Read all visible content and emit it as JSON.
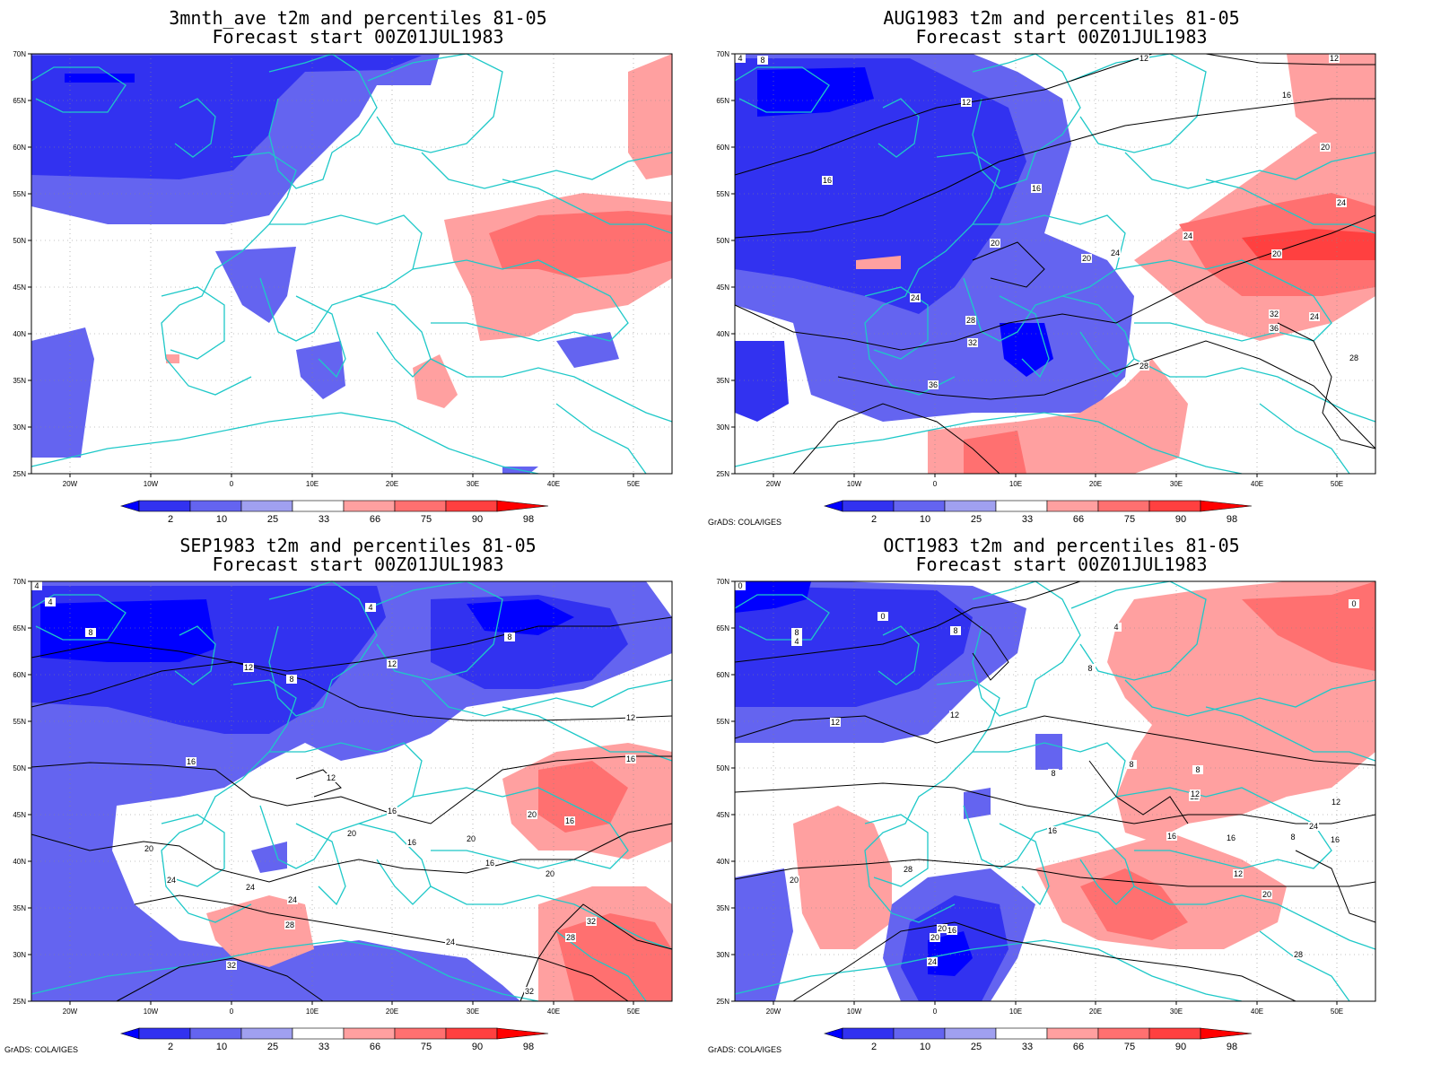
{
  "panels": [
    {
      "title1": "3mnth_ave t2m and percentiles 81-05",
      "title2": "Forecast start 00Z01JUL1983",
      "credit": "",
      "contour_labels": []
    },
    {
      "title1": "AUG1983 t2m and percentiles 81-05",
      "title2": "Forecast start 00Z01JUL1983",
      "credit": "GrADS: COLA/IGES",
      "contour_labels": [
        "4",
        "8",
        "12",
        "12",
        "12",
        "16",
        "16",
        "16",
        "20",
        "20",
        "20",
        "24",
        "24",
        "24",
        "20",
        "24",
        "28",
        "28",
        "32",
        "32",
        "36",
        "36",
        "24",
        "28"
      ]
    },
    {
      "title1": "SEP1983 t2m and percentiles 81-05",
      "title2": "Forecast start 00Z01JUL1983",
      "credit": "GrADS: COLA/IGES",
      "contour_labels": [
        "4",
        "4",
        "8",
        "4",
        "12",
        "8",
        "12",
        "8",
        "12",
        "16",
        "12",
        "16",
        "16",
        "20",
        "16",
        "20",
        "16",
        "20",
        "20",
        "24",
        "24",
        "28",
        "24",
        "32",
        "28",
        "32",
        "24",
        "32",
        "20",
        "16"
      ]
    },
    {
      "title1": "OCT1983 t2m and percentiles 81-05",
      "title2": "Forecast start 00Z01JUL1983",
      "credit": "GrADS: COLA/IGES",
      "contour_labels": [
        "0",
        "4",
        "8",
        "8",
        "0",
        "4",
        "8",
        "12",
        "12",
        "8",
        "8",
        "8",
        "12",
        "16",
        "12",
        "16",
        "16",
        "12",
        "8",
        "12",
        "16",
        "16",
        "20",
        "20",
        "20",
        "24",
        "28",
        "28",
        "0",
        "24",
        "20"
      ]
    }
  ],
  "axes": {
    "lat_labels": [
      "70N",
      "65N",
      "60N",
      "55N",
      "50N",
      "45N",
      "40N",
      "35N",
      "30N",
      "25N"
    ],
    "lon_labels": [
      "20W",
      "10W",
      "0",
      "10E",
      "20E",
      "30E",
      "40E",
      "50E"
    ]
  },
  "legend": {
    "values": [
      "2",
      "10",
      "25",
      "33",
      "66",
      "75",
      "90",
      "98"
    ],
    "colors": [
      "#0000ff",
      "#3232f0",
      "#6464f0",
      "#a0a0f0",
      "#ffffff",
      "#ffa0a0",
      "#ff7070",
      "#ff4040",
      "#ff0000"
    ]
  },
  "colors": {
    "coast": "#1ec8c8",
    "contour": "#000000"
  }
}
